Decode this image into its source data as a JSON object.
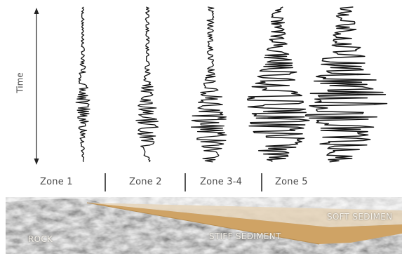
{
  "axis": {
    "time_label": "Time"
  },
  "zones": [
    {
      "id": "zone-1",
      "label": "Zone 1",
      "amplitude": 0.2
    },
    {
      "id": "zone-2",
      "label": "Zone 2",
      "amplitude": 0.32
    },
    {
      "id": "zone-3-4",
      "label": "Zone 3-4",
      "amplitude": 0.55
    },
    {
      "id": "zone-5",
      "label": "Zone 5",
      "amplitude": 0.78
    },
    {
      "id": "zone-6",
      "label": "",
      "amplitude": 1.0
    }
  ],
  "ground_layers": {
    "rock": "ROCK",
    "stiff_sediment": "STIFF SEDIMENT",
    "soft_sediment": "SOFT SEDIMEN"
  },
  "colors": {
    "trace": "#141414",
    "stiff_sediment": "#cfa365",
    "soft_sediment": "#e6d5bb",
    "rock_base": "#a9a9a9"
  }
}
